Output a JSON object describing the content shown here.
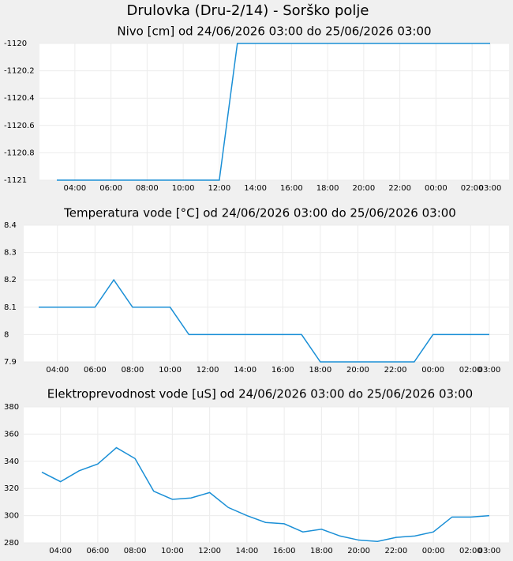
{
  "title": "Drulovka (Dru-2/14) - Sorško polje",
  "chart_data": [
    {
      "type": "line",
      "title": "Nivo [cm] od 24/06/2026 03:00 do 25/06/2026 03:00",
      "categories": [
        null,
        "04:00",
        null,
        "06:00",
        null,
        "08:00",
        null,
        "10:00",
        null,
        "12:00",
        null,
        "14:00",
        null,
        "16:00",
        null,
        "18:00",
        null,
        "20:00",
        null,
        "22:00",
        null,
        "00:00",
        null,
        "02:00",
        "03:00"
      ],
      "values": [
        -1121,
        -1121,
        -1121,
        -1121,
        -1121,
        -1121,
        -1121,
        -1121,
        -1121,
        -1121,
        -1120,
        -1120,
        -1120,
        -1120,
        -1120,
        -1120,
        -1120,
        -1120,
        -1120,
        -1120,
        -1120,
        -1120,
        -1120,
        -1120,
        -1120
      ],
      "color": "#1a8fd6",
      "ylim": [
        -1121,
        -1120
      ],
      "yticks": [
        -1121,
        -1120.8,
        -1120.6,
        -1120.4,
        -1120.2,
        -1120
      ],
      "grid": true
    },
    {
      "type": "line",
      "title": "Temperatura vode [°C] od 24/06/2026 03:00 do 25/06/2026 03:00",
      "categories": [
        null,
        "04:00",
        null,
        "06:00",
        null,
        "08:00",
        null,
        "10:00",
        null,
        "12:00",
        null,
        "14:00",
        null,
        "16:00",
        null,
        "18:00",
        null,
        "20:00",
        null,
        "22:00",
        null,
        "00:00",
        null,
        "02:00",
        "03:00"
      ],
      "values": [
        8.1,
        8.1,
        8.1,
        8.1,
        8.2,
        8.1,
        8.1,
        8.1,
        8,
        8,
        8,
        8,
        8,
        8,
        8,
        7.9,
        7.9,
        7.9,
        7.9,
        7.9,
        7.9,
        8,
        8,
        8,
        8
      ],
      "color": "#1a8fd6",
      "ylim": [
        7.9,
        8.4
      ],
      "yticks": [
        7.9,
        8,
        8.1,
        8.2,
        8.3,
        8.4
      ],
      "grid": true
    },
    {
      "type": "line",
      "title": "Elektroprevodnost vode [uS] od 24/06/2026 03:00 do 25/06/2026 03:00",
      "categories": [
        null,
        "04:00",
        null,
        "06:00",
        null,
        "08:00",
        null,
        "10:00",
        null,
        "12:00",
        null,
        "14:00",
        null,
        "16:00",
        null,
        "18:00",
        null,
        "20:00",
        null,
        "22:00",
        null,
        "00:00",
        null,
        "02:00",
        "03:00"
      ],
      "values": [
        332,
        325,
        333,
        338,
        350,
        342,
        318,
        312,
        313,
        317,
        306,
        300,
        295,
        294,
        288,
        290,
        285,
        282,
        281,
        284,
        285,
        288,
        299,
        299,
        300
      ],
      "color": "#1a8fd6",
      "ylim": [
        280,
        380
      ],
      "yticks": [
        280,
        300,
        320,
        340,
        360,
        380
      ],
      "grid": true
    }
  ]
}
